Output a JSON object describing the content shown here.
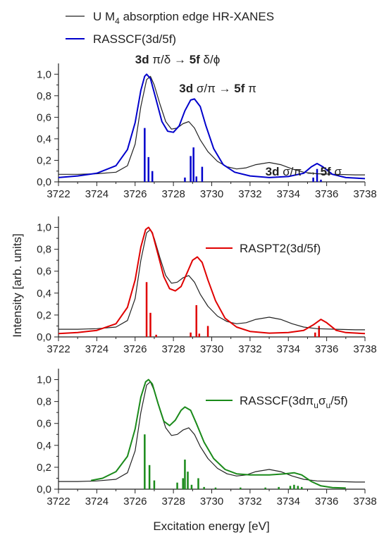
{
  "figure": {
    "ylabel": "Intensity [arb. units]",
    "xlabel": "Excitation energy [eV]",
    "legend": {
      "exp_label": "U M",
      "exp_sub": "4",
      "exp_suffix": " absorption edge HR-XANES",
      "rasscf_label": "RASSCF(3d/5f)"
    }
  },
  "chart_data": [
    {
      "type": "line",
      "panel": "top",
      "xlim": [
        3722,
        3738
      ],
      "ylim": [
        0,
        1.1
      ],
      "x_ticks": [
        "3722",
        "3724",
        "3726",
        "3728",
        "3730",
        "3732",
        "3734",
        "3736",
        "3738"
      ],
      "y_ticks": [
        "0,0",
        "0,2",
        "0,4",
        "0,6",
        "0,8",
        "1,0"
      ],
      "series": [
        {
          "name": "U M4 absorption edge HR-XANES",
          "color": "#222222",
          "points": [
            [
              3722,
              0.07
            ],
            [
              3723,
              0.07
            ],
            [
              3724,
              0.075
            ],
            [
              3725,
              0.09
            ],
            [
              3725.6,
              0.15
            ],
            [
              3726,
              0.35
            ],
            [
              3726.3,
              0.7
            ],
            [
              3726.6,
              0.95
            ],
            [
              3726.8,
              0.98
            ],
            [
              3727,
              0.9
            ],
            [
              3727.3,
              0.72
            ],
            [
              3727.6,
              0.56
            ],
            [
              3727.9,
              0.49
            ],
            [
              3728.2,
              0.5
            ],
            [
              3728.5,
              0.54
            ],
            [
              3728.8,
              0.56
            ],
            [
              3729.1,
              0.5
            ],
            [
              3729.4,
              0.39
            ],
            [
              3729.8,
              0.28
            ],
            [
              3730.3,
              0.19
            ],
            [
              3730.8,
              0.14
            ],
            [
              3731.3,
              0.12
            ],
            [
              3731.8,
              0.13
            ],
            [
              3732.3,
              0.16
            ],
            [
              3733,
              0.18
            ],
            [
              3733.6,
              0.16
            ],
            [
              3734.2,
              0.12
            ],
            [
              3734.8,
              0.09
            ],
            [
              3735.5,
              0.075
            ],
            [
              3736.5,
              0.07
            ],
            [
              3737.5,
              0.065
            ],
            [
              3738,
              0.065
            ]
          ]
        },
        {
          "name": "RASSCF(3d/5f)",
          "color": "#0000cc",
          "points": [
            [
              3722,
              0.04
            ],
            [
              3723,
              0.055
            ],
            [
              3724,
              0.08
            ],
            [
              3725,
              0.15
            ],
            [
              3725.6,
              0.3
            ],
            [
              3726,
              0.55
            ],
            [
              3726.3,
              0.85
            ],
            [
              3726.5,
              0.98
            ],
            [
              3726.6,
              1.0
            ],
            [
              3726.8,
              0.96
            ],
            [
              3727.1,
              0.76
            ],
            [
              3727.4,
              0.56
            ],
            [
              3727.7,
              0.47
            ],
            [
              3728.0,
              0.46
            ],
            [
              3728.3,
              0.52
            ],
            [
              3728.6,
              0.66
            ],
            [
              3728.9,
              0.76
            ],
            [
              3729.1,
              0.77
            ],
            [
              3729.4,
              0.7
            ],
            [
              3729.7,
              0.52
            ],
            [
              3730.1,
              0.31
            ],
            [
              3730.6,
              0.16
            ],
            [
              3731.2,
              0.09
            ],
            [
              3732,
              0.055
            ],
            [
              3733,
              0.04
            ],
            [
              3734,
              0.05
            ],
            [
              3734.8,
              0.08
            ],
            [
              3735.2,
              0.14
            ],
            [
              3735.5,
              0.17
            ],
            [
              3735.8,
              0.14
            ],
            [
              3736.3,
              0.07
            ],
            [
              3737,
              0.04
            ],
            [
              3738,
              0.03
            ]
          ]
        }
      ],
      "sticks": {
        "color": "#0000cc",
        "lines": [
          [
            3726.5,
            0.5
          ],
          [
            3726.7,
            0.23
          ],
          [
            3726.9,
            0.1
          ],
          [
            3728.6,
            0.04
          ],
          [
            3728.9,
            0.24
          ],
          [
            3729.05,
            0.32
          ],
          [
            3729.2,
            0.05
          ],
          [
            3729.5,
            0.14
          ],
          [
            3735.3,
            0.04
          ],
          [
            3735.5,
            0.12
          ],
          [
            3735.7,
            0.02
          ]
        ]
      },
      "annotations": [
        {
          "bold": "3d",
          "text": " π/δ →  ",
          "bold2": "5f",
          "text2": " δ/ϕ",
          "x": 3726,
          "y": 1.1
        },
        {
          "bold": "3d",
          "text": " σ/π →  ",
          "bold2": "5f",
          "text2": " π",
          "x": 3728.3,
          "y": 0.83
        },
        {
          "bold": "3d",
          "text": " σ/π →  ",
          "bold2": "5f",
          "text2": " σ",
          "x": 3732.8,
          "y": 0.06
        }
      ]
    },
    {
      "type": "line",
      "panel": "middle",
      "xlim": [
        3722,
        3738
      ],
      "ylim": [
        0,
        1.1
      ],
      "x_ticks": [
        "3722",
        "3724",
        "3726",
        "3728",
        "3730",
        "3732",
        "3734",
        "3736",
        "3738"
      ],
      "y_ticks": [
        "0,0",
        "0,2",
        "0,4",
        "0,6",
        "0,8",
        "1,0"
      ],
      "legend_label": "RASPT2(3d/5f)",
      "series": [
        {
          "name": "U M4 absorption edge HR-XANES",
          "color": "#222222",
          "points": [
            [
              3722,
              0.07
            ],
            [
              3723,
              0.07
            ],
            [
              3724,
              0.075
            ],
            [
              3725,
              0.09
            ],
            [
              3725.6,
              0.15
            ],
            [
              3726,
              0.35
            ],
            [
              3726.3,
              0.7
            ],
            [
              3726.6,
              0.95
            ],
            [
              3726.8,
              0.98
            ],
            [
              3727,
              0.9
            ],
            [
              3727.3,
              0.72
            ],
            [
              3727.6,
              0.56
            ],
            [
              3727.9,
              0.49
            ],
            [
              3728.2,
              0.5
            ],
            [
              3728.5,
              0.54
            ],
            [
              3728.8,
              0.56
            ],
            [
              3729.1,
              0.5
            ],
            [
              3729.4,
              0.39
            ],
            [
              3729.8,
              0.28
            ],
            [
              3730.3,
              0.19
            ],
            [
              3730.8,
              0.14
            ],
            [
              3731.3,
              0.12
            ],
            [
              3731.8,
              0.13
            ],
            [
              3732.3,
              0.16
            ],
            [
              3733,
              0.18
            ],
            [
              3733.6,
              0.16
            ],
            [
              3734.2,
              0.12
            ],
            [
              3734.8,
              0.09
            ],
            [
              3735.5,
              0.075
            ],
            [
              3736.5,
              0.07
            ],
            [
              3737.5,
              0.065
            ],
            [
              3738,
              0.065
            ]
          ]
        },
        {
          "name": "RASPT2(3d/5f)",
          "color": "#e00000",
          "points": [
            [
              3722,
              0.03
            ],
            [
              3723,
              0.04
            ],
            [
              3724,
              0.06
            ],
            [
              3725,
              0.12
            ],
            [
              3725.6,
              0.27
            ],
            [
              3726.0,
              0.52
            ],
            [
              3726.3,
              0.82
            ],
            [
              3726.55,
              0.98
            ],
            [
              3726.7,
              1.0
            ],
            [
              3726.9,
              0.95
            ],
            [
              3727.2,
              0.75
            ],
            [
              3727.5,
              0.55
            ],
            [
              3727.8,
              0.44
            ],
            [
              3728.1,
              0.42
            ],
            [
              3728.4,
              0.46
            ],
            [
              3728.7,
              0.58
            ],
            [
              3729.0,
              0.7
            ],
            [
              3729.25,
              0.73
            ],
            [
              3729.5,
              0.68
            ],
            [
              3729.8,
              0.52
            ],
            [
              3730.2,
              0.33
            ],
            [
              3730.7,
              0.17
            ],
            [
              3731.3,
              0.09
            ],
            [
              3732,
              0.05
            ],
            [
              3733,
              0.035
            ],
            [
              3734,
              0.04
            ],
            [
              3734.8,
              0.06
            ],
            [
              3735.3,
              0.11
            ],
            [
              3735.7,
              0.16
            ],
            [
              3736.0,
              0.13
            ],
            [
              3736.5,
              0.06
            ],
            [
              3737,
              0.04
            ],
            [
              3738,
              0.03
            ]
          ]
        }
      ],
      "sticks": {
        "color": "#e00000",
        "lines": [
          [
            3726.6,
            0.5
          ],
          [
            3726.8,
            0.22
          ],
          [
            3727.1,
            0.02
          ],
          [
            3728.9,
            0.04
          ],
          [
            3729.2,
            0.29
          ],
          [
            3729.35,
            0.03
          ],
          [
            3729.8,
            0.1
          ],
          [
            3735.4,
            0.04
          ],
          [
            3735.6,
            0.1
          ]
        ]
      }
    },
    {
      "type": "line",
      "panel": "bottom",
      "xlim": [
        3722,
        3738
      ],
      "ylim": [
        0,
        1.1
      ],
      "x_ticks": [
        "3722",
        "3724",
        "3726",
        "3728",
        "3730",
        "3732",
        "3734",
        "3736",
        "3738"
      ],
      "y_ticks": [
        "0,0",
        "0,2",
        "0,4",
        "0,6",
        "0,8",
        "1,0"
      ],
      "legend_label": "RASSCF(3dπuσu/5f)",
      "legend_parts": [
        "RASSCF(3dπ",
        "u",
        "σ",
        "u",
        "/5f)"
      ],
      "series": [
        {
          "name": "U M4 absorption edge HR-XANES",
          "color": "#222222",
          "points": [
            [
              3722,
              0.07
            ],
            [
              3723,
              0.07
            ],
            [
              3724,
              0.075
            ],
            [
              3725,
              0.09
            ],
            [
              3725.6,
              0.15
            ],
            [
              3726,
              0.35
            ],
            [
              3726.3,
              0.7
            ],
            [
              3726.6,
              0.95
            ],
            [
              3726.8,
              0.98
            ],
            [
              3727,
              0.9
            ],
            [
              3727.3,
              0.72
            ],
            [
              3727.6,
              0.56
            ],
            [
              3727.9,
              0.49
            ],
            [
              3728.2,
              0.5
            ],
            [
              3728.5,
              0.54
            ],
            [
              3728.8,
              0.56
            ],
            [
              3729.1,
              0.5
            ],
            [
              3729.4,
              0.39
            ],
            [
              3729.8,
              0.28
            ],
            [
              3730.3,
              0.19
            ],
            [
              3730.8,
              0.14
            ],
            [
              3731.3,
              0.12
            ],
            [
              3731.8,
              0.13
            ],
            [
              3732.3,
              0.16
            ],
            [
              3733,
              0.18
            ],
            [
              3733.6,
              0.16
            ],
            [
              3734.2,
              0.12
            ],
            [
              3734.8,
              0.09
            ],
            [
              3735.5,
              0.075
            ],
            [
              3736.5,
              0.07
            ],
            [
              3737.5,
              0.065
            ],
            [
              3738,
              0.065
            ]
          ]
        },
        {
          "name": "RASSCF(3dπuσu/5f)",
          "color": "#1a8a1a",
          "points": [
            [
              3723.7,
              0.08
            ],
            [
              3724.3,
              0.1
            ],
            [
              3725,
              0.16
            ],
            [
              3725.6,
              0.3
            ],
            [
              3726.0,
              0.55
            ],
            [
              3726.3,
              0.84
            ],
            [
              3726.55,
              0.98
            ],
            [
              3726.7,
              1.0
            ],
            [
              3726.9,
              0.96
            ],
            [
              3727.2,
              0.78
            ],
            [
              3727.5,
              0.62
            ],
            [
              3727.8,
              0.58
            ],
            [
              3728.1,
              0.63
            ],
            [
              3728.4,
              0.72
            ],
            [
              3728.6,
              0.75
            ],
            [
              3728.9,
              0.72
            ],
            [
              3729.2,
              0.6
            ],
            [
              3729.6,
              0.43
            ],
            [
              3730.1,
              0.28
            ],
            [
              3730.7,
              0.18
            ],
            [
              3731.3,
              0.14
            ],
            [
              3732,
              0.13
            ],
            [
              3733,
              0.13
            ],
            [
              3733.8,
              0.14
            ],
            [
              3734.3,
              0.15
            ],
            [
              3734.7,
              0.13
            ],
            [
              3735.2,
              0.07
            ],
            [
              3735.7,
              0.03
            ],
            [
              3736.3,
              0.015
            ],
            [
              3737,
              0.01
            ]
          ]
        }
      ],
      "sticks": {
        "color": "#1a8a1a",
        "lines": [
          [
            3726.5,
            0.5
          ],
          [
            3726.75,
            0.22
          ],
          [
            3727,
            0.08
          ],
          [
            3728.2,
            0.06
          ],
          [
            3728.5,
            0.1
          ],
          [
            3728.6,
            0.27
          ],
          [
            3728.75,
            0.16
          ],
          [
            3728.95,
            0.04
          ],
          [
            3729.3,
            0.1
          ],
          [
            3729.6,
            0.02
          ],
          [
            3730.2,
            0.015
          ],
          [
            3731.5,
            0.015
          ],
          [
            3732.8,
            0.015
          ],
          [
            3733.5,
            0.02
          ],
          [
            3734.1,
            0.03
          ],
          [
            3734.3,
            0.04
          ],
          [
            3734.5,
            0.03
          ],
          [
            3734.7,
            0.02
          ]
        ]
      }
    }
  ]
}
